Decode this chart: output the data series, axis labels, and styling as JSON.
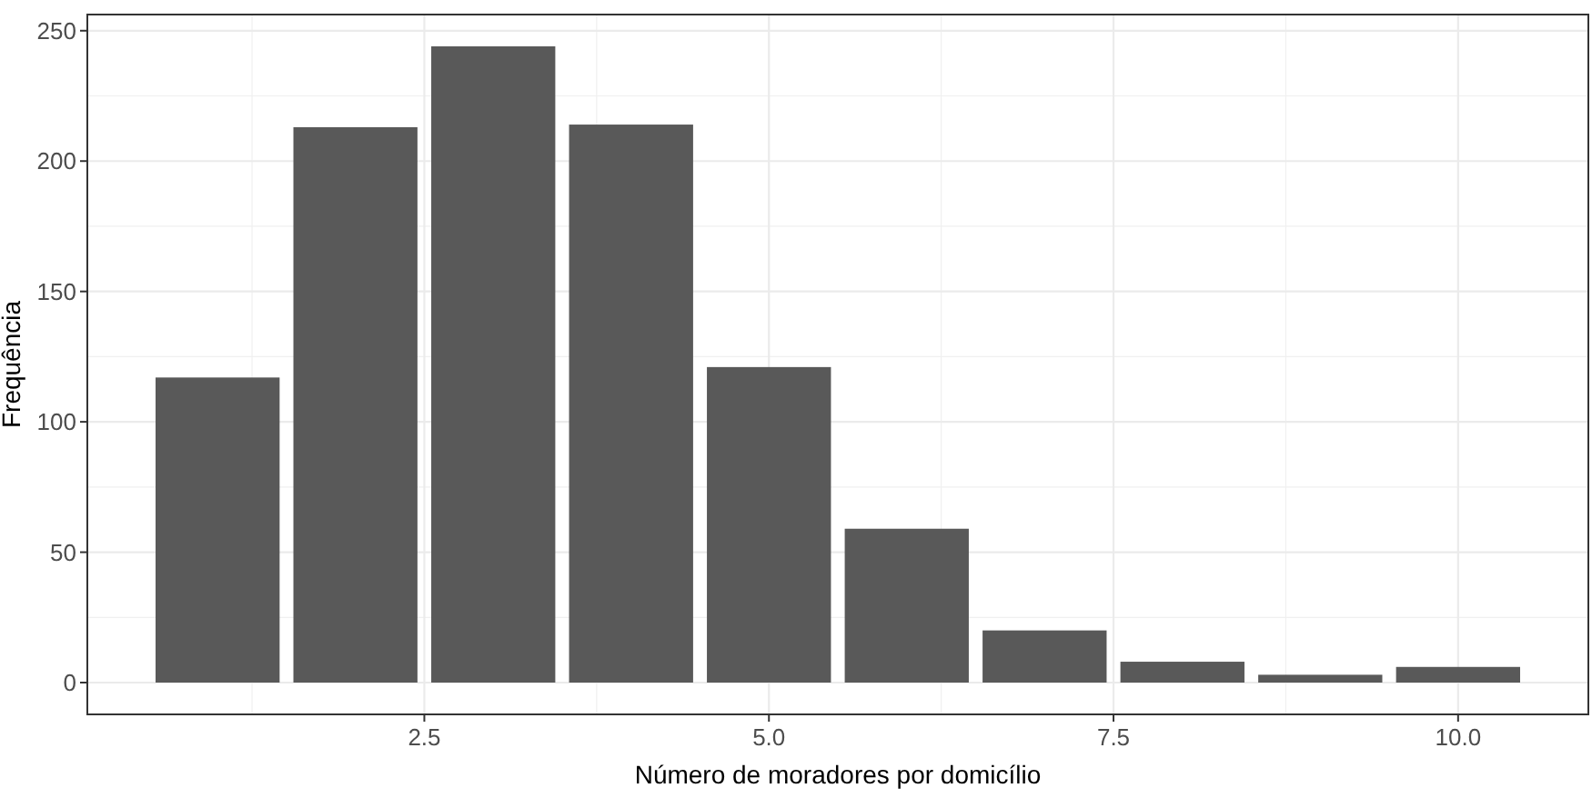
{
  "chart_data": {
    "type": "bar",
    "xlabel": "Número de moradores por domicílio",
    "ylabel": "Frequência",
    "x": [
      1,
      2,
      3,
      4,
      5,
      6,
      7,
      8,
      9,
      10
    ],
    "values": [
      117,
      213,
      244,
      214,
      121,
      59,
      20,
      8,
      3,
      6
    ],
    "color": "#595959",
    "xlim": [
      0.055,
      10.945
    ],
    "ylim": [
      -12.2,
      256.2
    ],
    "xticks": [
      {
        "value": 2.5,
        "label": "2.5"
      },
      {
        "value": 5,
        "label": "5.0"
      },
      {
        "value": 7.5,
        "label": "7.5"
      },
      {
        "value": 10,
        "label": "10.0"
      }
    ],
    "yticks": [
      0,
      50,
      100,
      150,
      200,
      250
    ],
    "grid": true
  }
}
